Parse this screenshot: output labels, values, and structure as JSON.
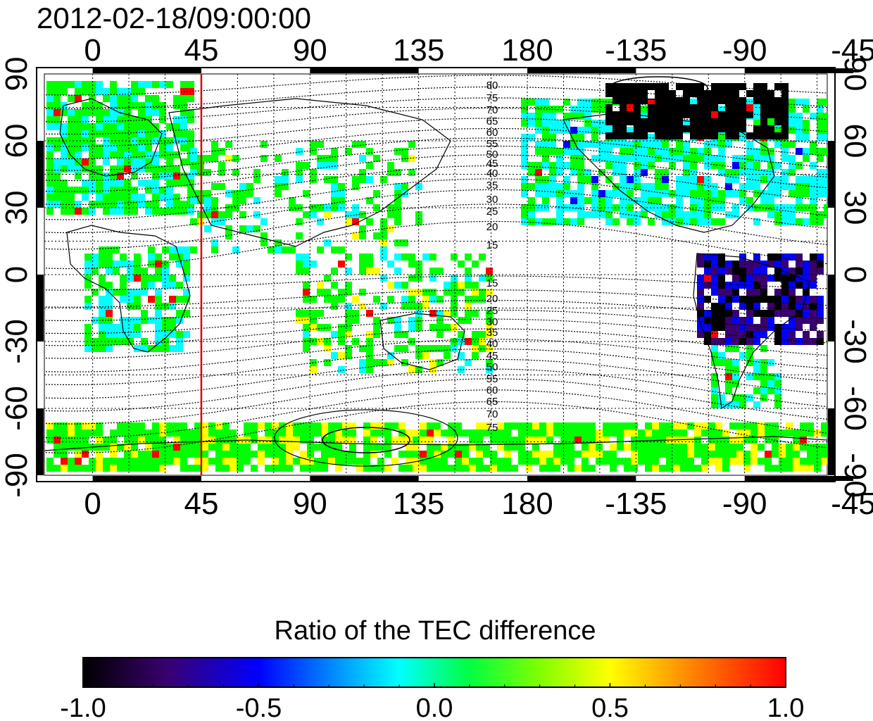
{
  "header": {
    "timestamp": "2012-02-18/09:00:00"
  },
  "map": {
    "lon_ticks_top": [
      "0",
      "45",
      "90",
      "135",
      "180",
      "-135",
      "-90",
      "-45"
    ],
    "lon_ticks_bottom": [
      "0",
      "45",
      "90",
      "135",
      "180",
      "-135",
      "-90",
      "-45"
    ],
    "lat_ticks_left": [
      "90",
      "60",
      "30",
      "0",
      "-30",
      "-60",
      "-90"
    ],
    "lat_ticks_right": [
      "90",
      "60",
      "30",
      "0",
      "-30",
      "-60",
      "-90"
    ],
    "contour_labels_north": [
      "80",
      "75",
      "70",
      "65",
      "60",
      "55",
      "50",
      "45",
      "40",
      "35",
      "30",
      "25",
      "20",
      "15"
    ],
    "contour_labels_south": [
      "15",
      "20",
      "25",
      "30",
      "35",
      "40",
      "45",
      "50",
      "55",
      "60",
      "65",
      "70",
      "75"
    ],
    "meridian_marker_lon": 45,
    "meridian_marker_color": "#dd0000",
    "lat_range": [
      -90,
      90
    ]
  },
  "colorbar": {
    "title": "Ratio of the TEC difference",
    "tick_labels": [
      "-1.0",
      "-0.5",
      "0.0",
      "0.5",
      "1.0"
    ],
    "range": [
      -1.0,
      1.0
    ],
    "colors": [
      "#000000",
      "#3a0070",
      "#0000ff",
      "#00ffff",
      "#00ff00",
      "#ffff00",
      "#ff8000",
      "#ff0000"
    ]
  }
}
